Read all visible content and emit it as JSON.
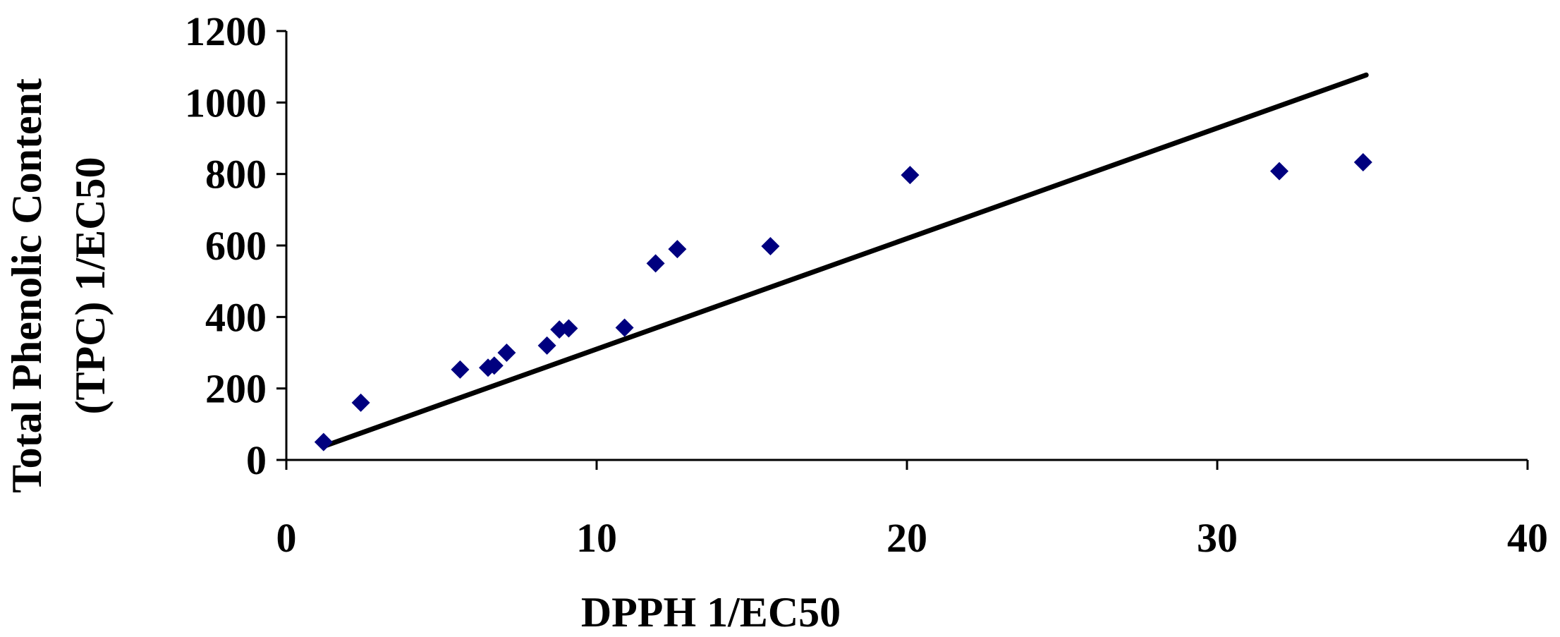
{
  "chart_data": {
    "type": "scatter",
    "title": "",
    "xlabel": "DPPH 1/EC50",
    "ylabel_lines": [
      "Total Phenolic Content",
      "(TPC) 1/EC50"
    ],
    "xlim": [
      0,
      40
    ],
    "ylim": [
      0,
      1200
    ],
    "x_ticks": [
      0,
      10,
      20,
      30,
      40
    ],
    "y_ticks": [
      0,
      200,
      400,
      600,
      800,
      1000,
      1200
    ],
    "grid": false,
    "legend": "none",
    "marker_color": "#00007f",
    "line_color": "#000000",
    "series": [
      {
        "points": [
          {
            "x": 1.2,
            "y": 50
          },
          {
            "x": 2.4,
            "y": 160
          },
          {
            "x": 5.6,
            "y": 253
          },
          {
            "x": 6.5,
            "y": 258
          },
          {
            "x": 6.7,
            "y": 264
          },
          {
            "x": 7.1,
            "y": 300
          },
          {
            "x": 8.4,
            "y": 320
          },
          {
            "x": 8.8,
            "y": 365
          },
          {
            "x": 9.1,
            "y": 368
          },
          {
            "x": 10.9,
            "y": 370
          },
          {
            "x": 11.9,
            "y": 550
          },
          {
            "x": 12.6,
            "y": 590
          },
          {
            "x": 15.6,
            "y": 598
          },
          {
            "x": 20.1,
            "y": 797
          },
          {
            "x": 32.0,
            "y": 808
          },
          {
            "x": 34.7,
            "y": 833
          }
        ]
      }
    ],
    "trendline": {
      "x": [
        1.2,
        34.8
      ],
      "y": [
        38,
        1077
      ]
    }
  }
}
